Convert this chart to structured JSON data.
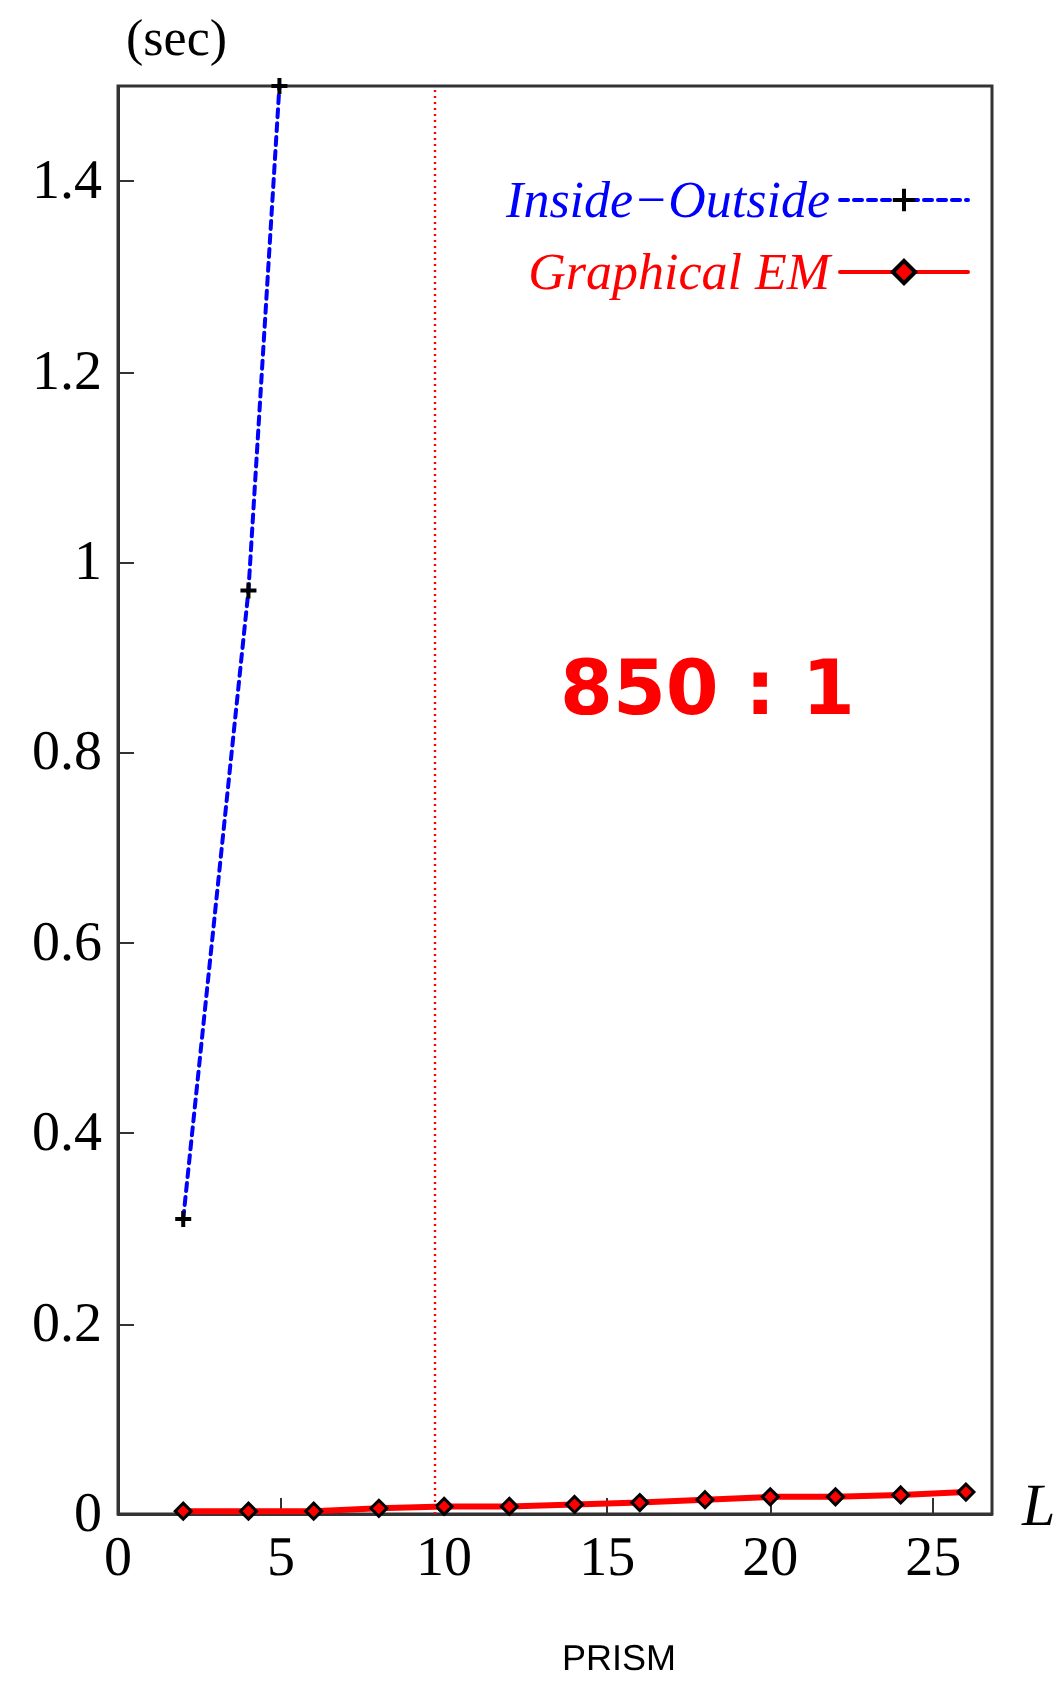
{
  "chart_data": {
    "type": "line",
    "ylabel": "(sec)",
    "xlabel": "L",
    "series": [
      {
        "name": "Inside−Outside",
        "color": "#0000ff",
        "marker": "cross",
        "line_style": "dashed",
        "x": [
          2,
          4,
          4.95
        ],
        "values": [
          0.31,
          0.97,
          1.5
        ]
      },
      {
        "name": "Graphical EM",
        "color": "#ff0000",
        "marker": "diamond",
        "line_style": "solid",
        "x": [
          2,
          4,
          6,
          8,
          10,
          12,
          14,
          16,
          18,
          20,
          22,
          24,
          26
        ],
        "values": [
          0.003,
          0.003,
          0.003,
          0.006,
          0.008,
          0.008,
          0.01,
          0.012,
          0.015,
          0.018,
          0.018,
          0.02,
          0.023
        ]
      }
    ],
    "xlim": [
      0,
      26.8
    ],
    "xticks": [
      0,
      5,
      10,
      15,
      20,
      25
    ],
    "ylim": [
      0,
      1.5
    ],
    "yticks": [
      0,
      0.2,
      0.4,
      0.6,
      0.8,
      1,
      1.2,
      1.4
    ],
    "ref_lines": [
      {
        "axis": "x",
        "value": 9.7,
        "color": "#ff0000",
        "line_style": "dotted"
      }
    ],
    "annotations": [
      "850 : 1",
      "PRISM"
    ],
    "legend": "top right",
    "grid": false
  }
}
